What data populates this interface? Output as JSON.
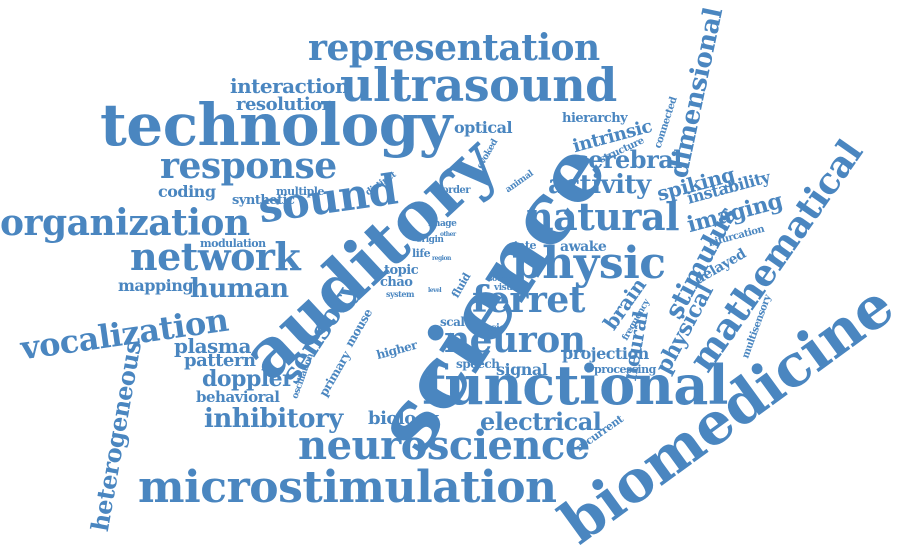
{
  "accent_color": "#4a86c0",
  "words": [
    "science",
    "auditory",
    "biomedicine",
    "functional",
    "technology",
    "ultrasound",
    "microstimulation",
    "physic",
    "neuroscience",
    "natural",
    "representation",
    "organization",
    "sound",
    "response",
    "network",
    "ferret",
    "neuron",
    "mathematical",
    "vocalization",
    "dimensional",
    "sensory",
    "human",
    "activity",
    "cerebral",
    "heterogeneous",
    "inhibitory",
    "electrical",
    "doppler",
    "stimulus",
    "imaging",
    "interaction",
    "plasma",
    "spiking",
    "brain",
    "biology",
    "neural",
    "physical",
    "instability",
    "mapping",
    "pattern",
    "behavioral",
    "optical",
    "intrinsic",
    "projection",
    "signal",
    "resolution",
    "coding",
    "synthetic",
    "awake",
    "delayed",
    "hierarchy",
    "modulation",
    "multiple",
    "topic",
    "chao",
    "primary",
    "higher",
    "speech",
    "scale",
    "music",
    "processing",
    "recurrent",
    "multisensory",
    "bifurcation",
    "connected",
    "structure",
    "evoked",
    "animal",
    "distinct",
    "order",
    "state",
    "life",
    "image",
    "origin",
    "visual",
    "source",
    "system",
    "fluid",
    "mouse",
    "oscillation",
    "frequency",
    "region",
    "level",
    "other"
  ]
}
